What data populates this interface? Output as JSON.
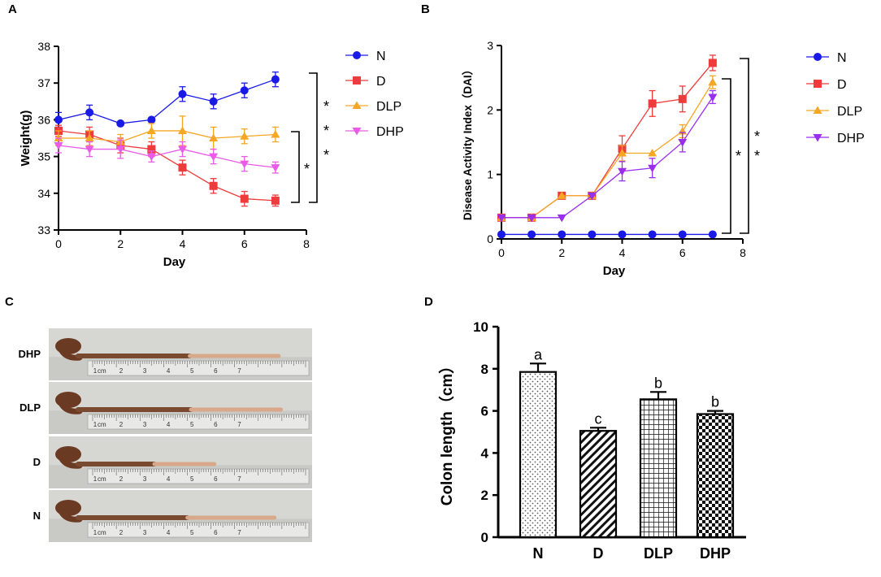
{
  "colors": {
    "N": "#1a1ae6",
    "D": "#ee3b3b",
    "DLP": "#f5a623",
    "DHP": "#ea5ce8",
    "DHP_B": "#9a2ef0",
    "axis": "#000000"
  },
  "chart_data": [
    {
      "panel": "A",
      "type": "line",
      "ylabel": "Weight(g)",
      "xlabel": "Day",
      "xlim": [
        0,
        8
      ],
      "ylim": [
        33,
        38
      ],
      "xticks": [
        0,
        2,
        4,
        6,
        8
      ],
      "yticks": [
        33,
        34,
        35,
        36,
        37,
        38
      ],
      "x": [
        0,
        1,
        2,
        3,
        4,
        5,
        6,
        7
      ],
      "series": [
        {
          "name": "N",
          "marker": "circle",
          "values": [
            36.0,
            36.2,
            35.9,
            36.0,
            36.7,
            36.5,
            36.8,
            37.1
          ],
          "errors": [
            0.2,
            0.2,
            0.05,
            0.05,
            0.2,
            0.2,
            0.2,
            0.2
          ]
        },
        {
          "name": "D",
          "marker": "square",
          "values": [
            35.7,
            35.6,
            35.3,
            35.2,
            34.7,
            34.2,
            33.85,
            33.8
          ],
          "errors": [
            0.15,
            0.2,
            0.2,
            0.2,
            0.2,
            0.2,
            0.2,
            0.15
          ]
        },
        {
          "name": "DLP",
          "marker": "triangle-up",
          "values": [
            35.5,
            35.5,
            35.4,
            35.7,
            35.7,
            35.5,
            35.55,
            35.6
          ],
          "errors": [
            0.2,
            0.2,
            0.2,
            0.2,
            0.4,
            0.3,
            0.2,
            0.2
          ]
        },
        {
          "name": "DHP",
          "marker": "triangle-down",
          "values": [
            35.3,
            35.2,
            35.2,
            35.0,
            35.2,
            35.0,
            34.8,
            34.7
          ],
          "errors": [
            0.2,
            0.2,
            0.25,
            0.15,
            0.2,
            0.2,
            0.2,
            0.15
          ]
        }
      ],
      "legend": [
        "N",
        "D",
        "DLP",
        "DHP"
      ],
      "significance": [
        "*",
        "*",
        "*",
        "*"
      ]
    },
    {
      "panel": "B",
      "type": "line",
      "ylabel": "Disease Activity Index（DAI）",
      "xlabel": "Day",
      "xlim": [
        0,
        8
      ],
      "ylim": [
        0,
        3
      ],
      "xticks": [
        0,
        2,
        4,
        6,
        8
      ],
      "yticks": [
        0,
        1,
        2,
        3
      ],
      "x": [
        0,
        1,
        2,
        3,
        4,
        5,
        6,
        7
      ],
      "series": [
        {
          "name": "N",
          "marker": "circle",
          "values": [
            0.07,
            0.07,
            0.07,
            0.07,
            0.07,
            0.07,
            0.07,
            0.07
          ],
          "errors": [
            0,
            0,
            0,
            0,
            0,
            0,
            0,
            0
          ]
        },
        {
          "name": "D",
          "marker": "square",
          "values": [
            0.33,
            0.33,
            0.67,
            0.67,
            1.4,
            2.1,
            2.17,
            2.73
          ],
          "errors": [
            0,
            0,
            0,
            0,
            0.2,
            0.2,
            0.2,
            0.12
          ]
        },
        {
          "name": "DLP",
          "marker": "triangle-up",
          "values": [
            0.33,
            0.33,
            0.67,
            0.67,
            1.33,
            1.33,
            1.67,
            2.43
          ],
          "errors": [
            0,
            0,
            0,
            0,
            0.12,
            0,
            0.1,
            0.1
          ]
        },
        {
          "name": "DHP",
          "marker": "triangle-down",
          "values": [
            0.33,
            0.33,
            0.33,
            0.67,
            1.05,
            1.1,
            1.5,
            2.2
          ],
          "errors": [
            0,
            0,
            0,
            0,
            0.15,
            0.15,
            0.15,
            0.1
          ]
        }
      ],
      "legend": [
        "N",
        "D",
        "DLP",
        "DHP"
      ],
      "significance": [
        "*",
        "*",
        "*"
      ]
    },
    {
      "panel": "D",
      "type": "bar",
      "ylabel": "Colon length（cm）",
      "categories": [
        "N",
        "D",
        "DLP",
        "DHP"
      ],
      "values": [
        7.85,
        5.05,
        6.55,
        5.85
      ],
      "errors": [
        0.4,
        0.15,
        0.35,
        0.15
      ],
      "letters": [
        "a",
        "c",
        "b",
        "b"
      ],
      "patterns": [
        "dots",
        "diagonal",
        "grid",
        "checker"
      ],
      "ylim": [
        0,
        10
      ],
      "yticks": [
        0,
        2,
        4,
        6,
        8,
        10
      ]
    }
  ],
  "photo_panel": {
    "label": "C",
    "rows": [
      "DHP",
      "DLP",
      "D",
      "N"
    ],
    "ruler_unit": "cm",
    "ruler_numbers": [
      "1",
      "2",
      "3",
      "4",
      "5",
      "6",
      "7"
    ]
  },
  "panels": {
    "A": "A",
    "B": "B",
    "C": "C",
    "D": "D"
  }
}
